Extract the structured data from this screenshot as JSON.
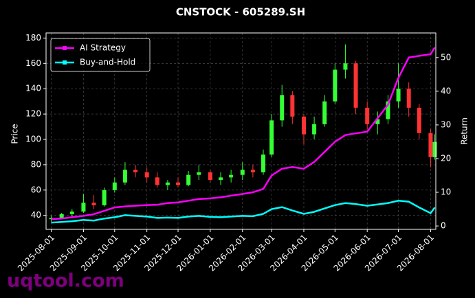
{
  "chart_data": {
    "type": "candlestick",
    "title": "CNSTOCK - 605289.SH",
    "ylabel": "Price",
    "y2label": "Return",
    "watermark": "uqtool.com",
    "x": [
      "2025-08-01",
      "2025-08-11",
      "2025-08-21",
      "2025-09-01",
      "2025-09-11",
      "2025-09-21",
      "2025-10-01",
      "2025-10-11",
      "2025-10-21",
      "2025-11-01",
      "2025-11-11",
      "2025-11-21",
      "2025-12-01",
      "2025-12-11",
      "2025-12-21",
      "2026-01-01",
      "2026-01-11",
      "2026-01-21",
      "2026-02-01",
      "2026-02-11",
      "2026-02-21",
      "2026-03-01",
      "2026-03-11",
      "2026-03-21",
      "2026-04-01",
      "2026-04-11",
      "2026-04-21",
      "2026-05-01",
      "2026-05-11",
      "2026-05-21",
      "2026-06-01",
      "2026-06-11",
      "2026-06-21",
      "2026-07-01",
      "2026-07-11",
      "2026-07-21",
      "2026-08-01",
      "2026-08-05"
    ],
    "open": [
      37,
      38,
      41,
      43,
      50,
      48,
      60,
      66,
      76,
      74,
      70,
      64,
      66,
      64,
      72,
      74,
      68,
      70,
      72,
      76,
      74,
      88,
      115,
      135,
      118,
      104,
      112,
      130,
      155,
      160,
      125,
      112,
      116,
      130,
      140,
      125,
      105,
      86
    ],
    "high": [
      40,
      42,
      45,
      57,
      56,
      62,
      70,
      82,
      80,
      78,
      74,
      68,
      70,
      75,
      80,
      76,
      74,
      76,
      82,
      80,
      92,
      120,
      143,
      138,
      120,
      118,
      135,
      160,
      175,
      162,
      130,
      122,
      135,
      160,
      145,
      128,
      108,
      104
    ],
    "low": [
      35,
      37,
      39,
      42,
      45,
      47,
      58,
      64,
      70,
      66,
      62,
      60,
      62,
      63,
      68,
      66,
      64,
      66,
      68,
      70,
      72,
      86,
      110,
      112,
      96,
      100,
      110,
      128,
      148,
      120,
      108,
      104,
      112,
      125,
      118,
      100,
      78,
      84
    ],
    "close": [
      38,
      41,
      43,
      50,
      48,
      60,
      66,
      76,
      74,
      70,
      64,
      66,
      64,
      72,
      74,
      68,
      70,
      72,
      76,
      74,
      88,
      115,
      135,
      118,
      104,
      112,
      130,
      155,
      160,
      125,
      112,
      116,
      130,
      140,
      125,
      105,
      86,
      98
    ],
    "up_color": "#33ff33",
    "down_color": "#ff3333",
    "series": [
      {
        "name": "AI Strategy",
        "color": "#ff00ff",
        "axis": "y2",
        "values": [
          2,
          2.2,
          2.6,
          3,
          3.5,
          4.5,
          5.5,
          5.8,
          6,
          6.2,
          6.3,
          6.8,
          7,
          7.5,
          8,
          8.2,
          8.5,
          9,
          9.5,
          10,
          11,
          15,
          17,
          17.5,
          17,
          19,
          22,
          25,
          27,
          27.5,
          28,
          32,
          36,
          44,
          50,
          50.5,
          51,
          53
        ]
      },
      {
        "name": "Buy-and-Hold",
        "color": "#00ffff",
        "axis": "y2",
        "values": [
          1,
          1.2,
          1.4,
          1.8,
          1.6,
          2.2,
          2.6,
          3.2,
          3,
          2.8,
          2.4,
          2.5,
          2.4,
          2.8,
          3,
          2.7,
          2.6,
          2.8,
          3,
          2.9,
          3.6,
          5,
          5.6,
          4.6,
          3.6,
          4.2,
          5.2,
          6.2,
          6.8,
          6.5,
          6,
          6.4,
          6.8,
          7.5,
          7.2,
          5.5,
          3.8,
          5.5
        ]
      }
    ],
    "xlim": [
      "2025-07-27",
      "2026-08-06"
    ],
    "xticks": [
      "2025-08-01",
      "2025-09-01",
      "2025-10-01",
      "2025-11-01",
      "2025-12-01",
      "2026-01-01",
      "2026-02-01",
      "2026-03-01",
      "2026-04-01",
      "2026-05-01",
      "2026-06-01",
      "2026-07-01",
      "2026-08-01"
    ],
    "ylim": [
      29,
      184
    ],
    "yticks": [
      40,
      60,
      80,
      100,
      120,
      140,
      160,
      180
    ],
    "y2lim": [
      -1,
      57.3
    ],
    "y2ticks": [
      0,
      10,
      20,
      30,
      40,
      50
    ],
    "grid": true,
    "legend": "upper left"
  }
}
